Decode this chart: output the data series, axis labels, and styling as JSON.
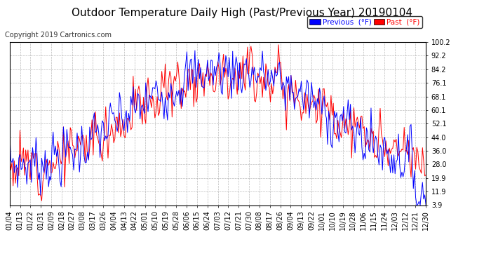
{
  "title": "Outdoor Temperature Daily High (Past/Previous Year) 20190104",
  "copyright": "Copyright 2019 Cartronics.com",
  "yticks": [
    3.9,
    11.9,
    19.9,
    28.0,
    36.0,
    44.0,
    52.1,
    60.1,
    68.1,
    76.1,
    84.2,
    92.2,
    100.2
  ],
  "ylim": [
    3.9,
    100.2
  ],
  "background_color": "#ffffff",
  "plot_bg_color": "#ffffff",
  "grid_color": "#aaaaaa",
  "legend_previous_label": "Previous  (°F)",
  "legend_past_label": "Past  (°F)",
  "previous_color": "#0000ff",
  "past_color": "#ff0000",
  "title_fontsize": 11,
  "tick_fontsize": 7,
  "copyright_fontsize": 7,
  "xtick_labels": [
    "01/04",
    "01/13",
    "01/22",
    "01/31",
    "02/09",
    "02/18",
    "02/27",
    "03/08",
    "03/17",
    "03/26",
    "04/04",
    "04/13",
    "04/22",
    "05/01",
    "05/10",
    "05/19",
    "05/28",
    "06/06",
    "06/15",
    "06/24",
    "07/03",
    "07/12",
    "07/21",
    "07/30",
    "08/08",
    "08/17",
    "08/26",
    "09/04",
    "09/13",
    "09/22",
    "10/01",
    "10/10",
    "10/19",
    "10/28",
    "11/06",
    "11/15",
    "11/24",
    "12/03",
    "12/12",
    "12/21",
    "12/30"
  ]
}
